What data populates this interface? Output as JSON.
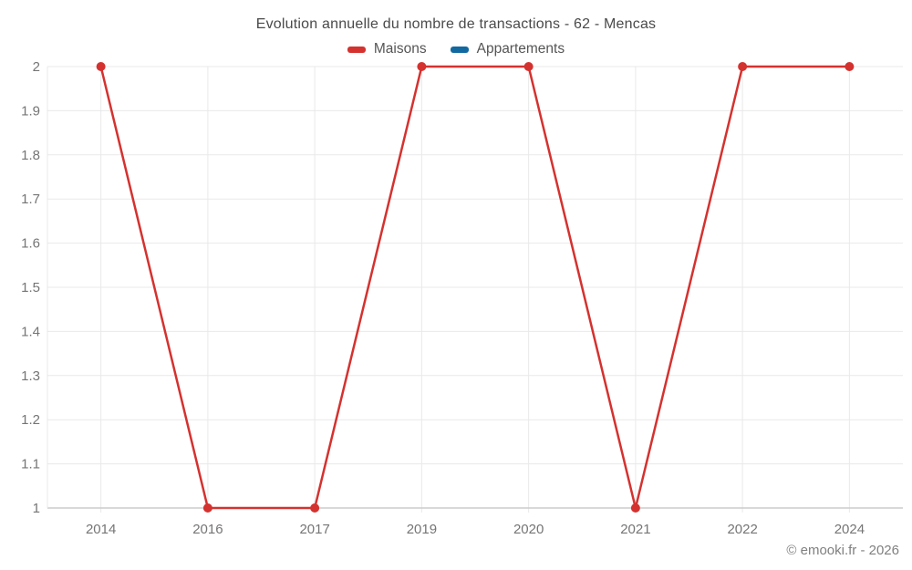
{
  "footer": {
    "copyright": "© emooki.fr - 2026"
  },
  "chart_data": {
    "type": "line",
    "title": "Evolution annuelle du nombre de transactions - 62 - Mencas",
    "categories": [
      "2014",
      "2016",
      "2017",
      "2019",
      "2020",
      "2021",
      "2022",
      "2024"
    ],
    "series": [
      {
        "name": "Maisons",
        "color": "#d4322f",
        "values": [
          2,
          1,
          1,
          2,
          2,
          1,
          2,
          2
        ]
      },
      {
        "name": "Appartements",
        "color": "#1269a0",
        "values": []
      }
    ],
    "xlabel": "",
    "ylabel": "",
    "ylim": [
      1,
      2
    ],
    "y_ticks": {
      "values": [
        1,
        1.1,
        1.2,
        1.3,
        1.4,
        1.5,
        1.6,
        1.7,
        1.8,
        1.9,
        2
      ],
      "labels": [
        "1",
        "1.1",
        "1.2",
        "1.3",
        "1.4",
        "1.5",
        "1.6",
        "1.7",
        "1.8",
        "1.9",
        "2"
      ]
    },
    "grid": true,
    "legend_position": "top"
  }
}
